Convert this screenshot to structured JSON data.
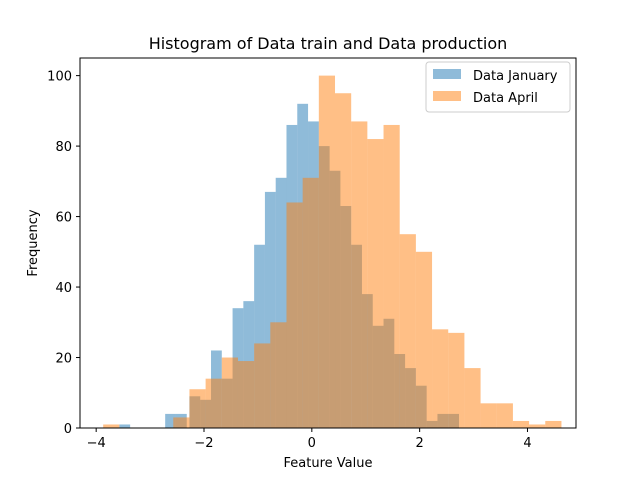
{
  "chart_data": {
    "type": "bar",
    "title": "Histogram of Data train and Data production",
    "xlabel": "Feature Value",
    "ylabel": "Frequency",
    "xlim": [
      -4.3,
      4.9
    ],
    "ylim": [
      0,
      105
    ],
    "xticks": [
      -4,
      -2,
      0,
      2,
      4
    ],
    "yticks": [
      0,
      20,
      40,
      60,
      80,
      100
    ],
    "grid": false,
    "legend_position": "top-right",
    "series": [
      {
        "name": "Data January",
        "color": "#1f77b4",
        "opacity": 0.5,
        "bins": [
          {
            "x0": -3.57,
            "x1": -3.37,
            "count": 1
          },
          {
            "x0": -2.72,
            "x1": -2.52,
            "count": 4
          },
          {
            "x0": -2.52,
            "x1": -2.32,
            "count": 4
          },
          {
            "x0": -2.27,
            "x1": -2.07,
            "count": 9
          },
          {
            "x0": -2.07,
            "x1": -1.87,
            "count": 8
          },
          {
            "x0": -1.87,
            "x1": -1.67,
            "count": 22
          },
          {
            "x0": -1.67,
            "x1": -1.47,
            "count": 14
          },
          {
            "x0": -1.47,
            "x1": -1.27,
            "count": 34
          },
          {
            "x0": -1.27,
            "x1": -1.07,
            "count": 36
          },
          {
            "x0": -1.07,
            "x1": -0.87,
            "count": 52
          },
          {
            "x0": -0.87,
            "x1": -0.67,
            "count": 67
          },
          {
            "x0": -0.67,
            "x1": -0.47,
            "count": 71
          },
          {
            "x0": -0.47,
            "x1": -0.27,
            "count": 86
          },
          {
            "x0": -0.27,
            "x1": -0.07,
            "count": 92
          },
          {
            "x0": -0.07,
            "x1": 0.13,
            "count": 87
          },
          {
            "x0": 0.13,
            "x1": 0.33,
            "count": 80
          },
          {
            "x0": 0.33,
            "x1": 0.53,
            "count": 73
          },
          {
            "x0": 0.53,
            "x1": 0.73,
            "count": 63
          },
          {
            "x0": 0.73,
            "x1": 0.93,
            "count": 52
          },
          {
            "x0": 0.93,
            "x1": 1.13,
            "count": 38
          },
          {
            "x0": 1.13,
            "x1": 1.33,
            "count": 29
          },
          {
            "x0": 1.33,
            "x1": 1.53,
            "count": 31
          },
          {
            "x0": 1.53,
            "x1": 1.73,
            "count": 21
          },
          {
            "x0": 1.73,
            "x1": 1.93,
            "count": 17
          },
          {
            "x0": 1.93,
            "x1": 2.13,
            "count": 12
          },
          {
            "x0": 2.13,
            "x1": 2.33,
            "count": 2
          },
          {
            "x0": 2.33,
            "x1": 2.53,
            "count": 4
          },
          {
            "x0": 2.53,
            "x1": 2.73,
            "count": 4
          }
        ]
      },
      {
        "name": "Data April",
        "color": "#ff7f0e",
        "opacity": 0.5,
        "bins": [
          {
            "x0": -3.87,
            "x1": -3.57,
            "count": 1
          },
          {
            "x0": -2.57,
            "x1": -2.27,
            "count": 3
          },
          {
            "x0": -2.27,
            "x1": -1.97,
            "count": 11
          },
          {
            "x0": -1.97,
            "x1": -1.67,
            "count": 14
          },
          {
            "x0": -1.67,
            "x1": -1.37,
            "count": 20
          },
          {
            "x0": -1.37,
            "x1": -1.07,
            "count": 19
          },
          {
            "x0": -1.07,
            "x1": -0.77,
            "count": 24
          },
          {
            "x0": -0.77,
            "x1": -0.47,
            "count": 30
          },
          {
            "x0": -0.47,
            "x1": -0.17,
            "count": 64
          },
          {
            "x0": -0.17,
            "x1": 0.13,
            "count": 71
          },
          {
            "x0": 0.13,
            "x1": 0.43,
            "count": 100
          },
          {
            "x0": 0.43,
            "x1": 0.73,
            "count": 95
          },
          {
            "x0": 0.73,
            "x1": 1.03,
            "count": 87
          },
          {
            "x0": 1.03,
            "x1": 1.33,
            "count": 82
          },
          {
            "x0": 1.33,
            "x1": 1.63,
            "count": 86
          },
          {
            "x0": 1.63,
            "x1": 1.93,
            "count": 55
          },
          {
            "x0": 1.93,
            "x1": 2.23,
            "count": 50
          },
          {
            "x0": 2.23,
            "x1": 2.53,
            "count": 28
          },
          {
            "x0": 2.53,
            "x1": 2.83,
            "count": 27
          },
          {
            "x0": 2.83,
            "x1": 3.13,
            "count": 17
          },
          {
            "x0": 3.13,
            "x1": 3.43,
            "count": 7
          },
          {
            "x0": 3.43,
            "x1": 3.73,
            "count": 7
          },
          {
            "x0": 3.73,
            "x1": 4.03,
            "count": 2
          },
          {
            "x0": 4.03,
            "x1": 4.33,
            "count": 1
          },
          {
            "x0": 4.33,
            "x1": 4.63,
            "count": 2
          }
        ]
      }
    ]
  }
}
